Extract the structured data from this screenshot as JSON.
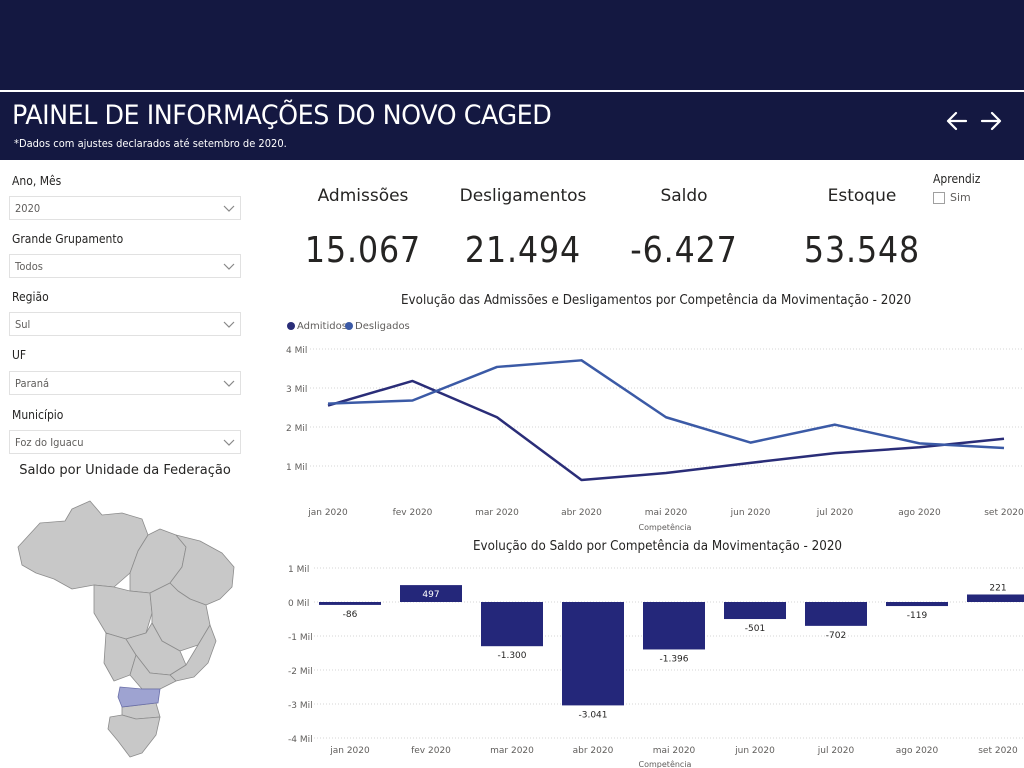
{
  "header": {
    "title": "PAINEL DE INFORMAÇÕES DO NOVO CAGED",
    "subtitle": "*Dados com ajustes declarados até setembro de 2020.",
    "back_icon": "arrow-left-icon",
    "forward_icon": "arrow-right-icon",
    "text_color": "#ffffff",
    "background": "#141841"
  },
  "filters": [
    {
      "label": "Ano, Mês",
      "value": "2020"
    },
    {
      "label": "Grande Grupamento",
      "value": "Todos"
    },
    {
      "label": "Região",
      "value": "Sul"
    },
    {
      "label": "UF",
      "value": "Paraná"
    },
    {
      "label": "Município",
      "value": "Foz do Iguacu"
    }
  ],
  "map": {
    "title": "Saldo por Unidade da Federação",
    "highlighted_state": "Paraná",
    "highlight_color": "#9ea3d1",
    "base_color": "#c8c8c8"
  },
  "kpis": [
    {
      "label": "Admissões",
      "value": "15.067"
    },
    {
      "label": "Desligamentos",
      "value": "21.494"
    },
    {
      "label": "Saldo",
      "value": "-6.427"
    },
    {
      "label": "Estoque",
      "value": "53.548"
    }
  ],
  "aprendiz": {
    "title": "Aprendiz",
    "option": "Sim",
    "checked": false
  },
  "line_chart": {
    "title": "Evolução das Admissões e Desligamentos por Competência da Movimentação - 2020",
    "xlabel": "Competência",
    "legend": [
      "Admitidos",
      "Desligados"
    ],
    "colors": [
      "#2a2d78",
      "#3b5aa6"
    ],
    "yticks": [
      "4 Mil",
      "3 Mil",
      "2 Mil",
      "1 Mil"
    ],
    "categories": [
      "jan 2020",
      "fev 2020",
      "mar 2020",
      "abr 2020",
      "mai 2020",
      "jun 2020",
      "jul 2020",
      "ago 2020",
      "set 2020"
    ]
  },
  "bar_chart": {
    "title": "Evolução do Saldo por Competência da Movimentação - 2020",
    "xlabel": "Competência",
    "color": "#24277a",
    "yticks": [
      "1 Mil",
      "0 Mil",
      "-1 Mil",
      "-2 Mil",
      "-3 Mil",
      "-4 Mil"
    ],
    "categories": [
      "jan 2020",
      "fev 2020",
      "mar 2020",
      "abr 2020",
      "mai 2020",
      "jun 2020",
      "jul 2020",
      "ago 2020",
      "set 2020"
    ],
    "labels": [
      "-86",
      "497",
      "-1.300",
      "-3.041",
      "-1.396",
      "-501",
      "-702",
      "-119",
      "221"
    ]
  },
  "chart_data": [
    {
      "type": "line",
      "title": "Evolução das Admissões e Desligamentos por Competência da Movimentação - 2020",
      "xlabel": "Competência",
      "ylabel": "",
      "x": [
        "jan 2020",
        "fev 2020",
        "mar 2020",
        "abr 2020",
        "mai 2020",
        "jun 2020",
        "jul 2020",
        "ago 2020",
        "set 2020"
      ],
      "series": [
        {
          "name": "Admitidos",
          "values": [
            2550,
            3180,
            2250,
            640,
            820,
            1080,
            1330,
            1480,
            1700
          ]
        },
        {
          "name": "Desligados",
          "values": [
            2600,
            2680,
            3540,
            3710,
            2250,
            1600,
            2060,
            1580,
            1460
          ]
        }
      ],
      "ylim": [
        0,
        4000
      ],
      "grid": true,
      "legend": "top-left"
    },
    {
      "type": "bar",
      "title": "Evolução do Saldo por Competência da Movimentação - 2020",
      "xlabel": "Competência",
      "ylabel": "",
      "categories": [
        "jan 2020",
        "fev 2020",
        "mar 2020",
        "abr 2020",
        "mai 2020",
        "jun 2020",
        "jul 2020",
        "ago 2020",
        "set 2020"
      ],
      "values": [
        -86,
        497,
        -1300,
        -3041,
        -1396,
        -501,
        -702,
        -119,
        221
      ],
      "ylim": [
        -4000,
        1000
      ],
      "grid": true
    }
  ]
}
